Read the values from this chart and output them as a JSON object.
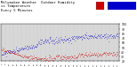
{
  "title": "Milwaukee Weather  Outdoor Humidity\nvs Temperature\nEvery 5 Minutes",
  "title_fontsize": 2.8,
  "background_color": "#ffffff",
  "plot_bg_color": "#d8d8d8",
  "humidity_color": "#0000cc",
  "temp_color": "#cc0000",
  "ylim_left": [
    20,
    100
  ],
  "ylim_right": [
    20,
    100
  ],
  "num_points": 288,
  "x_tick_count": 30,
  "y_right_ticks": [
    20,
    30,
    40,
    50,
    60,
    70,
    80,
    90,
    100
  ],
  "y_right_labels": [
    "20",
    "30",
    "40",
    "50",
    "60",
    "70",
    "80",
    "90",
    "100"
  ]
}
